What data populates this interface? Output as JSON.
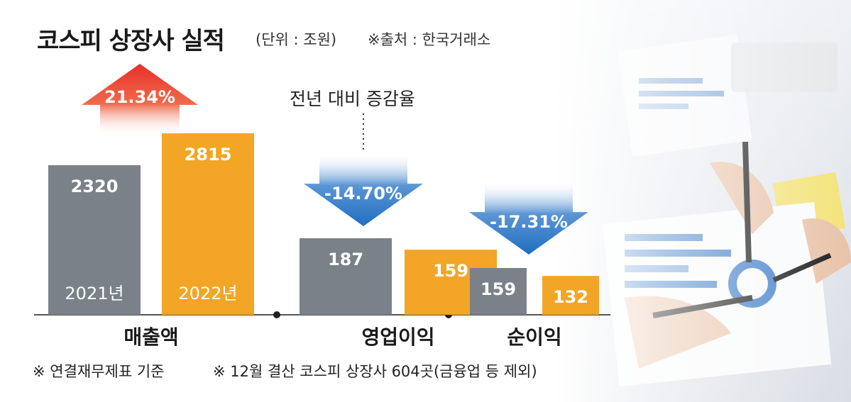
{
  "header": {
    "title": "코스피 상장사 실적",
    "unit": "(단위 : 조원)",
    "source": "※출처 : 한국거래소"
  },
  "annotation": "전년 대비 증감율",
  "footnotes": [
    "※ 연결재무제표 기준",
    "※ 12월 결산 코스피 상장사 604곳(금융업 등 제외)"
  ],
  "colors": {
    "bar_2021": "#7b8189",
    "bar_2022": "#f3a526",
    "increase": "#e8302a",
    "decrease": "#1f6fc0"
  },
  "chart_data": {
    "type": "bar",
    "categories": [
      "매출액",
      "영업이익",
      "순이익"
    ],
    "series": [
      {
        "name": "2021년",
        "values": [
          2320,
          187,
          159
        ]
      },
      {
        "name": "2022년",
        "values": [
          2815,
          159,
          132
        ]
      }
    ],
    "changes": [
      "21.34%",
      "-14.70%",
      "-17.31%"
    ],
    "groups": [
      {
        "value_scale_max": 2815
      },
      {
        "value_scale_max": 187
      },
      {
        "value_scale_max": 159
      }
    ]
  }
}
